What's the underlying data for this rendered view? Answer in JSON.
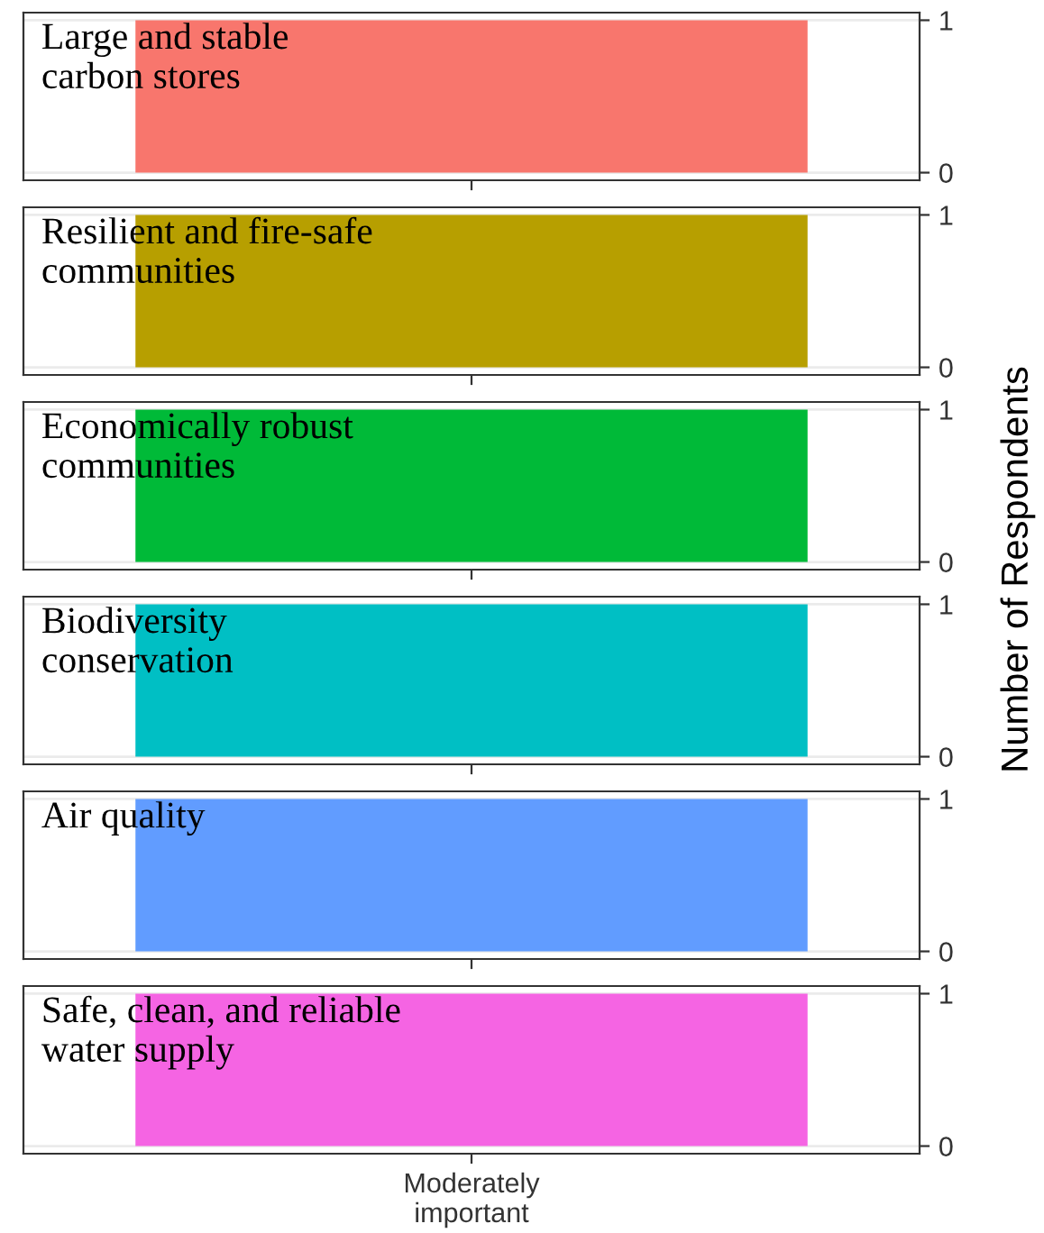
{
  "chart_data": [
    {
      "type": "bar",
      "title": "Large and stable\ncarbon stores",
      "categories": [
        null
      ],
      "values": [
        1
      ],
      "color": "#f8766d",
      "ylim": [
        -0.05,
        1.05
      ],
      "yticks": [
        0,
        1
      ],
      "grid": "y",
      "tick_labels": "y"
    },
    {
      "type": "bar",
      "title": "Resilient and fire-safe\ncommunities",
      "categories": [
        null
      ],
      "values": [
        1
      ],
      "color": "#b79f00",
      "ylim": [
        -0.05,
        1.05
      ],
      "yticks": [
        0,
        1
      ],
      "grid": "y",
      "tick_labels": "y"
    },
    {
      "type": "bar",
      "title": "Economically robust\ncommunities",
      "categories": [
        null
      ],
      "values": [
        1
      ],
      "color": "#00ba38",
      "ylim": [
        -0.05,
        1.05
      ],
      "yticks": [
        0,
        1
      ],
      "grid": "y",
      "tick_labels": "y",
      "ylabel": "Number of Respondents"
    },
    {
      "type": "bar",
      "title": "Biodiversity\nconservation",
      "categories": [
        null
      ],
      "values": [
        1
      ],
      "color": "#00bfc4",
      "ylim": [
        -0.05,
        1.05
      ],
      "yticks": [
        0,
        1
      ],
      "grid": "y",
      "tick_labels": "y"
    },
    {
      "type": "bar",
      "title": "Air quality",
      "categories": [
        null
      ],
      "values": [
        1
      ],
      "color": "#619cff",
      "ylim": [
        -0.05,
        1.05
      ],
      "yticks": [
        0,
        1
      ],
      "grid": "y",
      "tick_labels": "y"
    },
    {
      "type": "bar",
      "title": "Safe, clean, and reliable\nwater supply",
      "categories": [
        "Moderately\nimportant"
      ],
      "values": [
        1
      ],
      "color": "#f564e3",
      "ylim": [
        -0.05,
        1.05
      ],
      "yticks": [
        0,
        1
      ],
      "grid": "y"
    }
  ]
}
